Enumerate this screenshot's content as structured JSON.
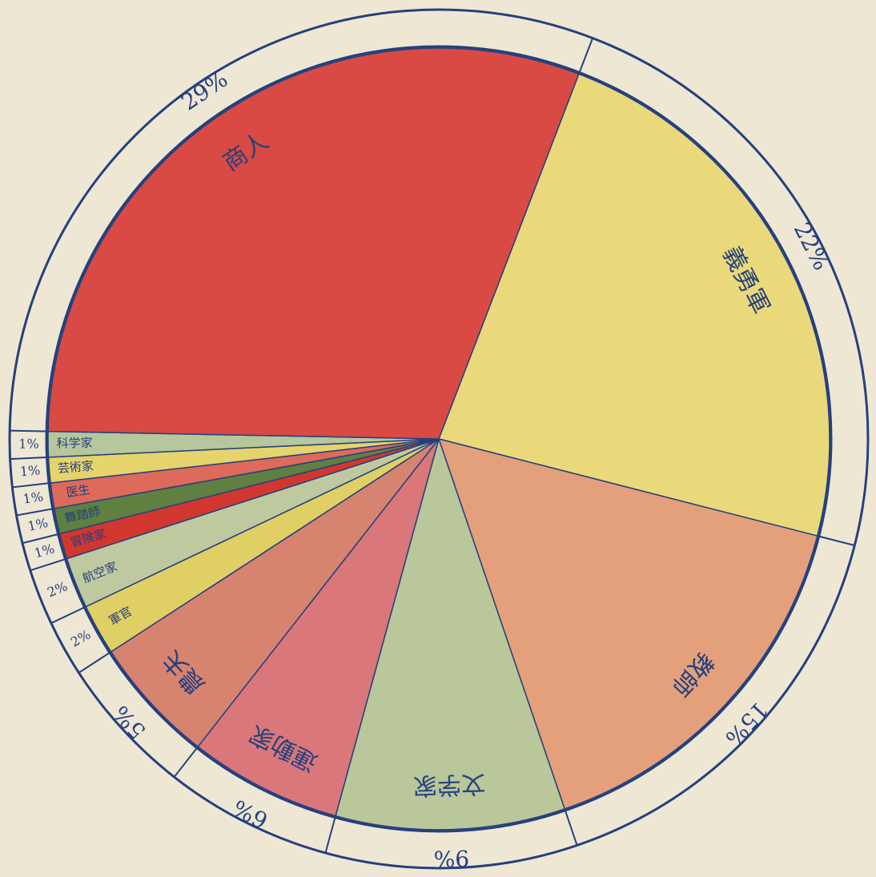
{
  "chart_data": {
    "type": "pie",
    "categories": [
      "義勇軍",
      "教師",
      "文学家",
      "運動家",
      "農夫",
      "軍官",
      "航空家",
      "冒険家",
      "舞踏師",
      "医生",
      "芸術家",
      "科学家",
      "商人"
    ],
    "values": [
      22,
      15,
      9,
      6,
      5,
      2,
      2,
      1,
      1,
      1,
      1,
      1,
      29
    ],
    "value_labels": [
      "22%",
      "15%",
      "9%",
      "6%",
      "5%",
      "2%",
      "2%",
      "1%",
      "1%",
      "1%",
      "1%",
      "1%",
      "29%"
    ],
    "colors": [
      "#ead97a",
      "#e4a07a",
      "#b9c79a",
      "#d9777a",
      "#d6836f",
      "#e0cf64",
      "#bfc9a0",
      "#d2372f",
      "#5f8040",
      "#dd6a5a",
      "#e5d36c",
      "#b6c79c",
      "#d94a45"
    ]
  }
}
